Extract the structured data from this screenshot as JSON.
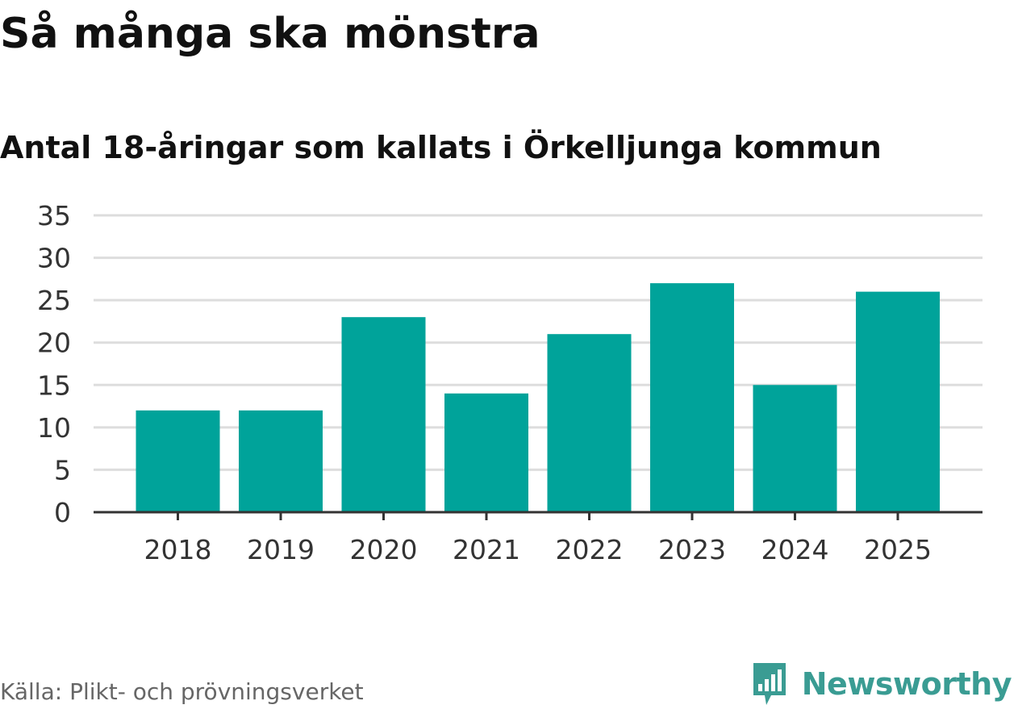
{
  "header": {
    "title": "Så många ska mönstra",
    "subtitle": "Antal 18-åringar som kallats i Örkelljunga kommun"
  },
  "footer": {
    "source": "Källa: Plikt- och prövningsverket",
    "brand_name": "Newsworthy"
  },
  "colors": {
    "bar": "#00a39a",
    "grid": "#dddddd",
    "axis": "#333333",
    "brand": "#3a9c93"
  },
  "icons": {
    "brand": "bar-chart-speech-bubble-icon"
  },
  "chart_data": {
    "type": "bar",
    "categories": [
      "2018",
      "2019",
      "2020",
      "2021",
      "2022",
      "2023",
      "2024",
      "2025"
    ],
    "values": [
      12,
      12,
      23,
      14,
      21,
      27,
      15,
      26
    ],
    "title": "Så många ska mönstra",
    "subtitle": "Antal 18-åringar som kallats i Örkelljunga kommun",
    "xlabel": "",
    "ylabel": "",
    "ylim": [
      0,
      35
    ],
    "yticks": [
      0,
      5,
      10,
      15,
      20,
      25,
      30,
      35
    ],
    "grid": true,
    "legend": "none"
  }
}
